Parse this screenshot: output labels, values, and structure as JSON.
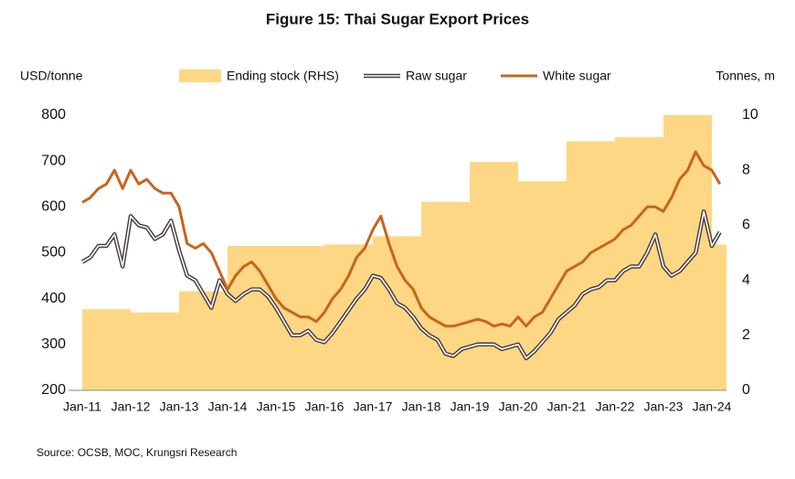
{
  "chart_data": {
    "type": "combo",
    "title": "Figure 15: Thai Sugar Export Prices",
    "ylabel": "USD/tonne",
    "y2label": "Tonnes, m",
    "source": "Source: OCSB, MOC, Krungsri Research",
    "categories": [
      "Jan-11",
      null,
      null,
      null,
      null,
      null,
      "Jan-12",
      null,
      null,
      null,
      null,
      null,
      "Jan-13",
      null,
      null,
      null,
      null,
      null,
      "Jan-14",
      null,
      null,
      null,
      null,
      null,
      "Jan-15",
      null,
      null,
      null,
      null,
      null,
      "Jan-16",
      null,
      null,
      null,
      null,
      null,
      "Jan-17",
      null,
      null,
      null,
      null,
      null,
      "Jan-18",
      null,
      null,
      null,
      null,
      null,
      "Jan-19",
      null,
      null,
      null,
      null,
      null,
      "Jan-20",
      null,
      null,
      null,
      null,
      null,
      "Jan-21",
      null,
      null,
      null,
      null,
      null,
      "Jan-22",
      null,
      null,
      null,
      null,
      null,
      "Jan-23",
      null,
      null,
      null,
      null,
      null,
      "Jan-24",
      null
    ],
    "series": [
      {
        "name": "Ending stock (RHS)",
        "type": "bar",
        "axis": "y2",
        "color": "#fdd783",
        "values": [
          2.95,
          null,
          null,
          null,
          null,
          null,
          2.83,
          null,
          null,
          null,
          null,
          null,
          3.6,
          null,
          null,
          null,
          null,
          null,
          5.25,
          null,
          null,
          null,
          null,
          null,
          5.25,
          null,
          null,
          null,
          null,
          null,
          5.3,
          null,
          null,
          null,
          null,
          null,
          5.6,
          null,
          null,
          null,
          null,
          null,
          6.85,
          null,
          null,
          null,
          null,
          null,
          8.3,
          null,
          null,
          null,
          null,
          null,
          7.6,
          null,
          null,
          null,
          null,
          null,
          9.05,
          null,
          null,
          null,
          null,
          null,
          9.2,
          null,
          null,
          null,
          null,
          null,
          10,
          null,
          null,
          null,
          null,
          null,
          5.3,
          null
        ]
      },
      {
        "name": "Raw sugar",
        "type": "line",
        "color": "#4a3b3b",
        "values": [
          480,
          490,
          515,
          515,
          540,
          470,
          580,
          560,
          555,
          530,
          540,
          570,
          505,
          450,
          440,
          410,
          380,
          440,
          410,
          395,
          410,
          420,
          420,
          405,
          380,
          350,
          320,
          320,
          330,
          310,
          305,
          325,
          350,
          375,
          400,
          420,
          450,
          445,
          420,
          390,
          380,
          360,
          335,
          320,
          310,
          280,
          275,
          290,
          295,
          300,
          300,
          300,
          290,
          295,
          300,
          270,
          285,
          305,
          325,
          355,
          370,
          385,
          410,
          420,
          425,
          440,
          440,
          460,
          470,
          470,
          500,
          540,
          470,
          450,
          460,
          480,
          500,
          590,
          515,
          545
        ]
      },
      {
        "name": "White sugar",
        "type": "line",
        "color": "#c8641e",
        "values": [
          610,
          620,
          640,
          650,
          680,
          640,
          680,
          650,
          660,
          640,
          630,
          630,
          600,
          520,
          510,
          520,
          500,
          460,
          420,
          450,
          470,
          480,
          460,
          430,
          400,
          380,
          370,
          360,
          360,
          350,
          370,
          400,
          420,
          450,
          490,
          510,
          550,
          580,
          520,
          470,
          440,
          420,
          380,
          360,
          350,
          340,
          340,
          345,
          350,
          355,
          350,
          340,
          345,
          340,
          360,
          340,
          360,
          370,
          400,
          430,
          460,
          470,
          480,
          500,
          510,
          520,
          530,
          550,
          560,
          580,
          600,
          600,
          590,
          620,
          660,
          680,
          720,
          690,
          680,
          650
        ]
      }
    ],
    "ylim": [
      200,
      800
    ],
    "yticks": [
      200,
      300,
      400,
      500,
      600,
      700,
      800
    ],
    "y2lim": [
      0,
      10
    ],
    "y2ticks": [
      0,
      2,
      4,
      6,
      8,
      10
    ]
  }
}
